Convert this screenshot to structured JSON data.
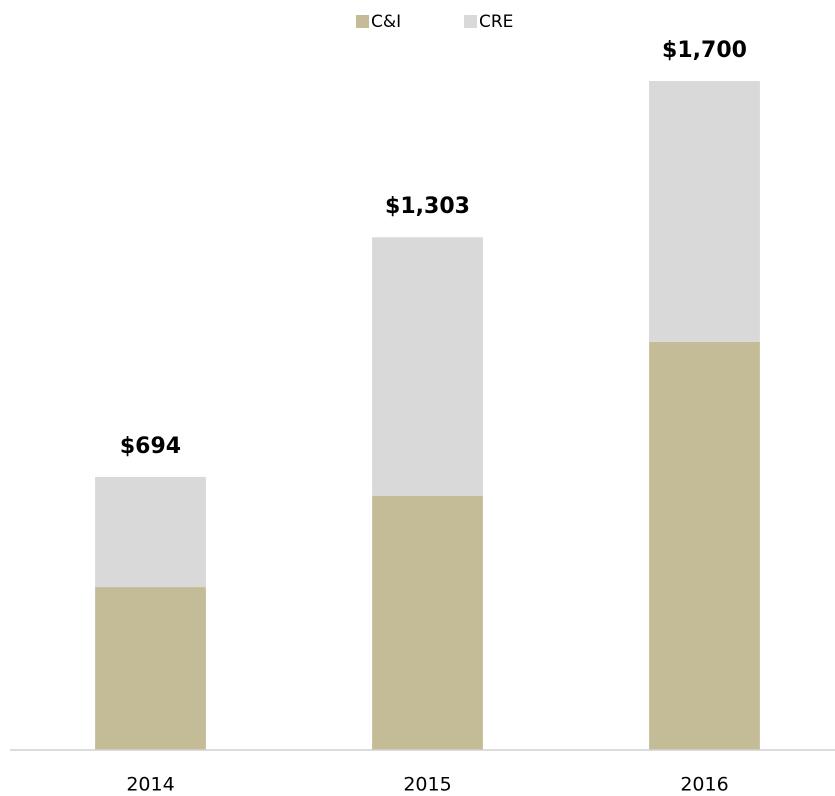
{
  "chart_data": {
    "type": "bar",
    "stacked": true,
    "categories": [
      "2014",
      "2015",
      "2016"
    ],
    "series": [
      {
        "name": "C&I",
        "color": "#c4bc96",
        "values": [
          414,
          646,
          1037
        ]
      },
      {
        "name": "CRE",
        "color": "#d9d9d9",
        "values": [
          280,
          657,
          663
        ]
      }
    ],
    "totals": [
      694,
      1303,
      1700
    ],
    "total_labels": [
      "$694",
      "$1,303",
      "$1,700"
    ]
  }
}
